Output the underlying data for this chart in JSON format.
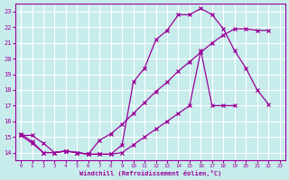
{
  "xlabel": "Windchill (Refroidissement éolien,°C)",
  "bg_color": "#c8ecec",
  "grid_color": "#aadddd",
  "line_color": "#990099",
  "xlim": [
    -0.5,
    23.5
  ],
  "ylim": [
    13.5,
    23.5
  ],
  "yticks": [
    14,
    15,
    16,
    17,
    18,
    19,
    20,
    21,
    22,
    23
  ],
  "xticks": [
    0,
    1,
    2,
    3,
    4,
    5,
    6,
    7,
    8,
    9,
    10,
    11,
    12,
    13,
    14,
    15,
    16,
    17,
    18,
    19,
    20,
    21,
    22,
    23
  ],
  "curve1_x": [
    0,
    1,
    2,
    3,
    4,
    5,
    6,
    7,
    8,
    9,
    10,
    11,
    12,
    13,
    14,
    15,
    16,
    17,
    18,
    19,
    20,
    21,
    22
  ],
  "curve1_y": [
    15.1,
    15.1,
    14.6,
    14.0,
    14.1,
    14.0,
    13.9,
    13.9,
    13.9,
    14.5,
    18.5,
    19.4,
    21.2,
    21.8,
    22.8,
    22.8,
    23.2,
    22.8,
    21.9,
    20.5,
    19.4,
    18.0,
    17.1
  ],
  "curve2_x": [
    0,
    1,
    2,
    3,
    4,
    5,
    6,
    7,
    8,
    9,
    10,
    11,
    12,
    13,
    14,
    15,
    16,
    17,
    18,
    19,
    20,
    21,
    22
  ],
  "curve2_y": [
    15.1,
    14.6,
    14.0,
    14.0,
    14.1,
    14.0,
    13.9,
    14.8,
    15.2,
    15.8,
    16.5,
    17.2,
    17.9,
    18.5,
    19.2,
    19.8,
    20.4,
    21.0,
    21.5,
    21.9,
    21.9,
    21.8,
    21.8
  ],
  "curve3_x": [
    0,
    1,
    2,
    3,
    4,
    5,
    6,
    7,
    8,
    9,
    10,
    11,
    12,
    13,
    14,
    15,
    16,
    17,
    18,
    19
  ],
  "curve3_y": [
    15.2,
    14.7,
    14.0,
    14.0,
    14.1,
    14.0,
    13.9,
    13.9,
    13.9,
    14.0,
    14.5,
    15.0,
    15.5,
    16.0,
    16.5,
    17.0,
    20.5,
    17.0,
    17.0,
    17.0
  ]
}
